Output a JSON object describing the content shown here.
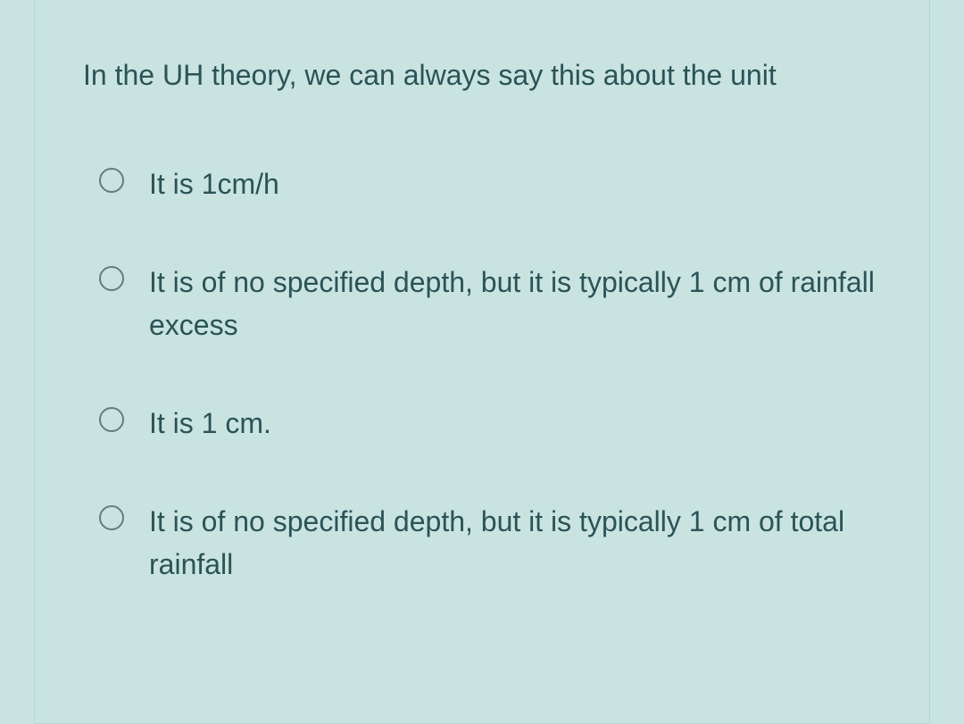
{
  "question": {
    "prompt": "In the UH theory, we can always say this about the unit"
  },
  "options": [
    {
      "label": "It is 1cm/h"
    },
    {
      "label": "It is of no specified depth, but it is typically 1 cm of rainfall excess"
    },
    {
      "label": "It is 1 cm."
    },
    {
      "label": "It is of no specified depth, but it is typically 1 cm of total rainfall"
    }
  ],
  "colors": {
    "background": "#c9e3e1",
    "text": "#2a5456",
    "radio_border": "#6b7a7b",
    "card_border": "#b8d6d3"
  },
  "typography": {
    "question_fontsize": 32,
    "option_fontsize": 32,
    "font_family": "Arial"
  }
}
